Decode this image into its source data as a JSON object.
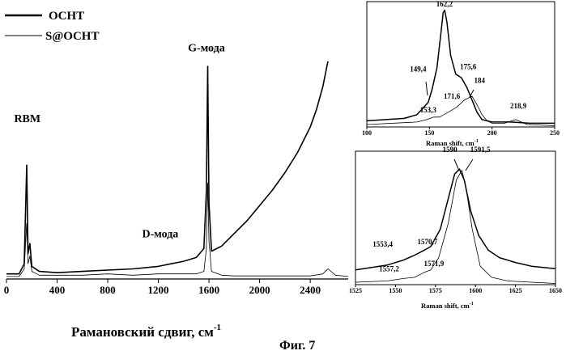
{
  "legend": [
    {
      "label": "OCHT",
      "style": "thick"
    },
    {
      "label": "S@OCHT",
      "style": "thin"
    }
  ],
  "figure_caption": "Фиг. 7",
  "chart_data": [
    {
      "id": "main",
      "type": "line",
      "xlabel": "Рамановский сдвиг, см",
      "xlabel_sup": "-1",
      "xlim": [
        0,
        2700
      ],
      "ylim": [
        0,
        1.0
      ],
      "xticks": [
        0,
        400,
        800,
        1200,
        1600,
        2000,
        2400
      ],
      "xtick_labels": [
        "0",
        "400",
        "800",
        "1200",
        "1600",
        "2000",
        "2400"
      ],
      "annotations": [
        {
          "text": "RBM",
          "x": 165,
          "y": 0.62
        },
        {
          "text": "G-мода",
          "x": 1580,
          "y": 0.9
        },
        {
          "text": "D-мода",
          "x": 1215,
          "y": 0.165
        }
      ],
      "series": [
        {
          "name": "OCHT",
          "style": "thick",
          "x": [
            0,
            100,
            140,
            160,
            170,
            185,
            200,
            260,
            400,
            600,
            800,
            1000,
            1200,
            1300,
            1400,
            1500,
            1560,
            1580,
            1590,
            1600,
            1620,
            1700,
            1800,
            1900,
            2000,
            2100,
            2200,
            2300,
            2400,
            2450,
            2500,
            2540
          ],
          "y": [
            0.02,
            0.02,
            0.06,
            0.45,
            0.1,
            0.14,
            0.05,
            0.03,
            0.025,
            0.03,
            0.035,
            0.04,
            0.05,
            0.06,
            0.07,
            0.085,
            0.12,
            0.35,
            0.84,
            0.3,
            0.11,
            0.13,
            0.18,
            0.23,
            0.29,
            0.35,
            0.42,
            0.5,
            0.6,
            0.67,
            0.76,
            0.86
          ]
        },
        {
          "name": "S@OCHT",
          "style": "thin",
          "x": [
            0,
            100,
            140,
            160,
            170,
            185,
            200,
            260,
            400,
            600,
            800,
            1000,
            1200,
            1300,
            1400,
            1500,
            1560,
            1580,
            1590,
            1600,
            1620,
            1700,
            1800,
            2000,
            2200,
            2400,
            2500,
            2540,
            2600,
            2700
          ],
          "y": [
            0.01,
            0.01,
            0.04,
            0.22,
            0.06,
            0.09,
            0.03,
            0.015,
            0.015,
            0.015,
            0.02,
            0.015,
            0.02,
            0.02,
            0.02,
            0.02,
            0.03,
            0.12,
            0.38,
            0.15,
            0.03,
            0.015,
            0.012,
            0.012,
            0.012,
            0.012,
            0.02,
            0.04,
            0.015,
            0.01
          ]
        }
      ]
    },
    {
      "id": "inset_top",
      "type": "line",
      "xlabel": "Raman shift, cm",
      "xlabel_sup": "-1",
      "xlim": [
        100,
        250
      ],
      "ylim": [
        0,
        1.0
      ],
      "xticks": [
        100,
        150,
        200,
        250
      ],
      "xtick_labels": [
        "100",
        "150",
        "200",
        "250"
      ],
      "annotations": [
        {
          "text": "162,2",
          "x": 162,
          "y": 0.98
        },
        {
          "text": "175,6",
          "x": 181,
          "y": 0.47
        },
        {
          "text": "149,4",
          "x": 141,
          "y": 0.45
        },
        {
          "text": "184",
          "x": 190,
          "y": 0.36
        },
        {
          "text": "171,6",
          "x": 168,
          "y": 0.23
        },
        {
          "text": "153,3",
          "x": 149,
          "y": 0.12
        },
        {
          "text": "218,9",
          "x": 221,
          "y": 0.15
        }
      ],
      "series": [
        {
          "name": "OCHT",
          "style": "thick",
          "x": [
            100,
            130,
            140,
            149,
            152,
            156,
            159,
            161,
            162.2,
            164,
            167,
            171,
            175.6,
            180,
            184,
            188,
            192,
            200,
            215,
            230,
            250
          ],
          "y": [
            0.05,
            0.07,
            0.1,
            0.2,
            0.3,
            0.48,
            0.75,
            0.93,
            0.95,
            0.85,
            0.58,
            0.43,
            0.4,
            0.32,
            0.22,
            0.12,
            0.06,
            0.04,
            0.04,
            0.03,
            0.03
          ]
        },
        {
          "name": "S@OCHT",
          "style": "thin",
          "x": [
            100,
            140,
            148,
            153.3,
            158,
            165,
            171.6,
            178,
            184,
            188,
            192,
            196,
            200,
            210,
            218.9,
            228,
            250
          ],
          "y": [
            0.02,
            0.04,
            0.06,
            0.08,
            0.08,
            0.12,
            0.16,
            0.22,
            0.25,
            0.18,
            0.1,
            0.05,
            0.03,
            0.03,
            0.06,
            0.02,
            0.01
          ]
        }
      ]
    },
    {
      "id": "inset_bottom",
      "type": "line",
      "xlabel": "Raman shift, cm",
      "xlabel_sup": "-1",
      "xlim": [
        1525,
        1650
      ],
      "ylim": [
        0,
        1.0
      ],
      "xticks": [
        1525,
        1550,
        1575,
        1600,
        1625,
        1650
      ],
      "xtick_labels": [
        "1525",
        "1550",
        "1575",
        "1600",
        "1625",
        "1650"
      ],
      "annotations": [
        {
          "text": "1590",
          "x": 1584,
          "y": 1.08
        },
        {
          "text": "1591,5",
          "x": 1603,
          "y": 1.08
        },
        {
          "text": "1553,4",
          "x": 1542,
          "y": 0.31
        },
        {
          "text": "1570,7",
          "x": 1570,
          "y": 0.33
        },
        {
          "text": "1557,2",
          "x": 1546,
          "y": 0.11
        },
        {
          "text": "1571,9",
          "x": 1574,
          "y": 0.15
        }
      ],
      "series": [
        {
          "name": "OCHT",
          "style": "thick",
          "x": [
            1525,
            1545,
            1555,
            1562,
            1568,
            1572,
            1578,
            1583,
            1587,
            1590,
            1593,
            1597,
            1602,
            1608,
            1615,
            1625,
            1635,
            1650
          ],
          "y": [
            0.12,
            0.16,
            0.2,
            0.24,
            0.28,
            0.31,
            0.45,
            0.7,
            0.9,
            0.94,
            0.85,
            0.6,
            0.4,
            0.28,
            0.22,
            0.18,
            0.15,
            0.13
          ]
        },
        {
          "name": "S@OCHT",
          "style": "thin",
          "x": [
            1525,
            1545,
            1555,
            1562,
            1568,
            1572,
            1577,
            1583,
            1588,
            1591.5,
            1594,
            1598,
            1603,
            1610,
            1620,
            1635,
            1650
          ],
          "y": [
            0.02,
            0.03,
            0.05,
            0.06,
            0.1,
            0.12,
            0.22,
            0.5,
            0.85,
            0.93,
            0.8,
            0.45,
            0.15,
            0.06,
            0.03,
            0.02,
            0.01
          ]
        }
      ]
    }
  ]
}
